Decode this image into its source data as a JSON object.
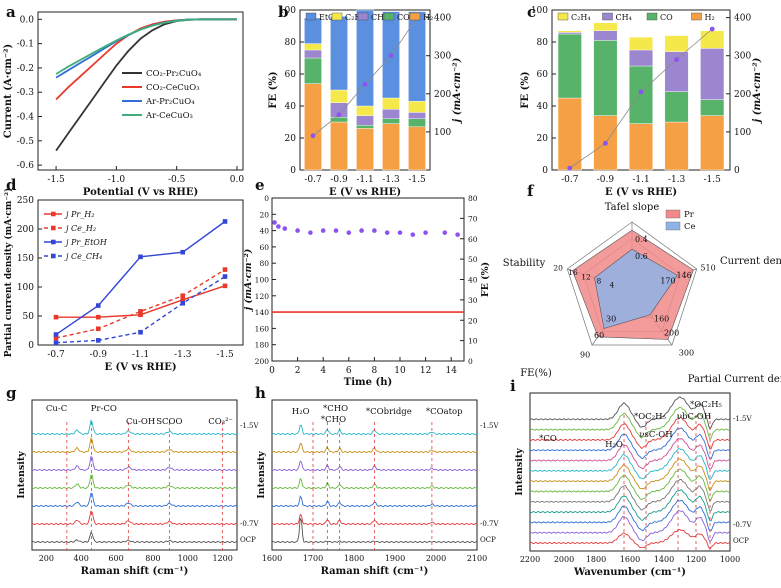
{
  "chart_data": [
    {
      "panel": "a",
      "type": "line",
      "xlabel": "Potential (V vs RHE)",
      "ylabel": "Current (A·cm⁻²)",
      "xlim": [
        -1.65,
        0.05
      ],
      "ylim": [
        -0.62,
        0.03
      ],
      "xticks": [
        "-1.5",
        "-1.0",
        "-0.5",
        "0.0"
      ],
      "yticks": [
        "0.0",
        "-0.1",
        "-0.2",
        "-0.3",
        "-0.4",
        "-0.5",
        "-0.6"
      ],
      "legend": [
        {
          "label": "CO₂-Pr₂CuO₄",
          "color": "#333333"
        },
        {
          "label": "CO₂-CeCuO₃",
          "color": "#e8392c"
        },
        {
          "label": "Ar-Pr₂CuO₄",
          "color": "#2f6fd6"
        },
        {
          "label": "Ar-CeCuO₃",
          "color": "#3fae7b"
        }
      ],
      "series": [
        {
          "name": "CO₂-Pr₂CuO₄",
          "color": "#333333",
          "x": [
            -1.5,
            -1.4,
            -1.3,
            -1.2,
            -1.1,
            -1.0,
            -0.9,
            -0.8,
            -0.7,
            -0.6,
            -0.5,
            -0.4,
            -0.3,
            -0.2,
            -0.1,
            0.0
          ],
          "y": [
            -0.54,
            -0.47,
            -0.4,
            -0.33,
            -0.26,
            -0.19,
            -0.13,
            -0.08,
            -0.045,
            -0.02,
            -0.007,
            -0.002,
            0,
            0,
            0,
            0
          ]
        },
        {
          "name": "CO₂-CeCuO₃",
          "color": "#e8392c",
          "x": [
            -1.5,
            -1.4,
            -1.3,
            -1.2,
            -1.1,
            -1.0,
            -0.9,
            -0.8,
            -0.7,
            -0.6,
            -0.5,
            -0.4,
            -0.3,
            -0.2,
            -0.1,
            0.0
          ],
          "y": [
            -0.33,
            -0.28,
            -0.235,
            -0.19,
            -0.145,
            -0.1,
            -0.065,
            -0.038,
            -0.02,
            -0.01,
            -0.004,
            -0.001,
            0,
            0,
            0,
            0
          ]
        },
        {
          "name": "Ar-Pr₂CuO₄",
          "color": "#2f6fd6",
          "x": [
            -1.5,
            -1.4,
            -1.3,
            -1.2,
            -1.1,
            -1.0,
            -0.9,
            -0.8,
            -0.7,
            -0.6,
            -0.5,
            -0.4,
            -0.3,
            -0.2,
            -0.1,
            0.0
          ],
          "y": [
            -0.24,
            -0.21,
            -0.18,
            -0.15,
            -0.12,
            -0.09,
            -0.065,
            -0.042,
            -0.025,
            -0.013,
            -0.005,
            -0.001,
            0,
            0,
            0,
            0
          ]
        },
        {
          "name": "Ar-CeCuO₃",
          "color": "#3fae7b",
          "x": [
            -1.5,
            -1.4,
            -1.3,
            -1.2,
            -1.1,
            -1.0,
            -0.9,
            -0.8,
            -0.7,
            -0.6,
            -0.5,
            -0.4,
            -0.3,
            -0.2,
            -0.1,
            0.0
          ],
          "y": [
            -0.225,
            -0.195,
            -0.168,
            -0.14,
            -0.113,
            -0.087,
            -0.063,
            -0.042,
            -0.026,
            -0.014,
            -0.006,
            -0.002,
            0,
            0,
            0,
            0
          ]
        }
      ]
    },
    {
      "panel": "b",
      "type": "bar",
      "stacked": true,
      "xlabel": "E (V vs RHE)",
      "ylabel": "FE (%)",
      "ylabel_right": "j (mA·cm⁻²)",
      "ylim": [
        0,
        100
      ],
      "ylim_right": [
        0,
        420
      ],
      "categories": [
        "-0.7",
        "-0.9",
        "-1.1",
        "-1.3",
        "-1.5"
      ],
      "yticks": [
        "0",
        "20",
        "40",
        "60",
        "80",
        "100"
      ],
      "yticks_right": [
        "100",
        "200",
        "300",
        "400"
      ],
      "legend": [
        {
          "label": "EtOH",
          "color": "#5b8fe0"
        },
        {
          "label": "C₂H₄",
          "color": "#f5e84a"
        },
        {
          "label": "CH₄",
          "color": "#9b86cf"
        },
        {
          "label": "CO",
          "color": "#57b26a"
        },
        {
          "label": "H₂",
          "color": "#f5a044"
        }
      ],
      "series": [
        {
          "name": "H₂",
          "color": "#f5a044",
          "values": [
            54,
            30,
            26,
            29,
            27
          ]
        },
        {
          "name": "CO",
          "color": "#57b26a",
          "values": [
            16,
            3,
            2,
            3,
            5
          ]
        },
        {
          "name": "CH₄",
          "color": "#9b86cf",
          "values": [
            5,
            9,
            6,
            6,
            4
          ]
        },
        {
          "name": "C₂H₄",
          "color": "#f5e84a",
          "values": [
            4,
            8,
            6,
            7,
            7
          ]
        },
        {
          "name": "EtOH",
          "color": "#5b8fe0",
          "values": [
            16,
            46,
            60,
            54,
            56
          ]
        }
      ],
      "current_density": {
        "color": "#8d52f0",
        "values": [
          90,
          145,
          225,
          300,
          400
        ]
      }
    },
    {
      "panel": "c",
      "type": "bar",
      "stacked": true,
      "xlabel": "E (V vs RHE)",
      "ylabel": "FE (%)",
      "ylabel_right": "j (mA·cm⁻²)",
      "ylim": [
        0,
        100
      ],
      "ylim_right": [
        0,
        420
      ],
      "categories": [
        "-0.7",
        "-0.9",
        "-1.1",
        "-1.3",
        "-1.5"
      ],
      "yticks": [
        "0",
        "20",
        "40",
        "60",
        "80",
        "100"
      ],
      "yticks_right": [
        "0",
        "100",
        "200",
        "300",
        "400"
      ],
      "legend": [
        {
          "label": "C₂H₄",
          "color": "#f5e84a"
        },
        {
          "label": "CH₄",
          "color": "#9b86cf"
        },
        {
          "label": "CO",
          "color": "#57b26a"
        },
        {
          "label": "H₂",
          "color": "#f5a044"
        }
      ],
      "series": [
        {
          "name": "H₂",
          "color": "#f5a044",
          "values": [
            45,
            34,
            29,
            30,
            34
          ]
        },
        {
          "name": "CO",
          "color": "#57b26a",
          "values": [
            40,
            47,
            36,
            19,
            10
          ]
        },
        {
          "name": "CH₄",
          "color": "#9b86cf",
          "values": [
            1,
            6,
            10,
            25,
            32
          ]
        },
        {
          "name": "C₂H₄",
          "color": "#f5e84a",
          "values": [
            1,
            5,
            8,
            10,
            11
          ]
        }
      ],
      "current_density": {
        "color": "#8d52f0",
        "values": [
          5,
          70,
          205,
          290,
          370
        ]
      }
    },
    {
      "panel": "d",
      "type": "line",
      "xlabel": "E (V vs RHE)",
      "ylabel": "Partial current density (mA·cm⁻²)",
      "categories": [
        "-0.7",
        "-0.9",
        "-1.1",
        "-1.3",
        "-1.5"
      ],
      "ylim": [
        0,
        250
      ],
      "yticks": [
        "0",
        "50",
        "100",
        "150",
        "200",
        "250"
      ],
      "legend": [
        {
          "label": "j Pr_H₂",
          "color": "#e8392c",
          "dash": false
        },
        {
          "label": "j Ce_H₂",
          "color": "#e8392c",
          "dash": true
        },
        {
          "label": "j Pr_EtOH",
          "color": "#3347d6",
          "dash": false
        },
        {
          "label": "j Ce_CH₄",
          "color": "#3347d6",
          "dash": true
        }
      ],
      "series": [
        {
          "name": "j Pr_H₂",
          "color": "#e8392c",
          "dash": false,
          "values": [
            48,
            48,
            52,
            78,
            102
          ]
        },
        {
          "name": "j Ce_H₂",
          "color": "#e8392c",
          "dash": true,
          "values": [
            12,
            28,
            58,
            85,
            130
          ]
        },
        {
          "name": "j Pr_EtOH",
          "color": "#3347d6",
          "dash": false,
          "values": [
            18,
            68,
            152,
            160,
            213
          ]
        },
        {
          "name": "j Ce_CH₄",
          "color": "#3347d6",
          "dash": true,
          "values": [
            4,
            8,
            22,
            72,
            118
          ]
        }
      ]
    },
    {
      "panel": "e",
      "type": "scatter",
      "xlabel": "Time (h)",
      "ylabel": "j (mA·cm⁻²)",
      "ylabel_right": "FE (%)",
      "xlim": [
        0,
        15
      ],
      "ylim": [
        0,
        200
      ],
      "ylim_right": [
        0,
        80
      ],
      "xticks": [
        "0",
        "2",
        "4",
        "6",
        "8",
        "10",
        "12",
        "14"
      ],
      "yticks": [
        "0",
        "20",
        "40",
        "60",
        "80",
        "100",
        "120",
        "140",
        "160",
        "180",
        "200"
      ],
      "yticks_right": [
        "0",
        "10",
        "20",
        "30",
        "40",
        "50",
        "60",
        "70",
        "80"
      ],
      "fe_series": {
        "color": "#8d52f0",
        "x": [
          0.2,
          0.5,
          1,
          2,
          3,
          4,
          5,
          6,
          7,
          8,
          9,
          10,
          11,
          12,
          13.5,
          14.5
        ],
        "y": [
          68,
          66,
          65,
          64,
          63,
          64,
          64,
          63,
          64,
          64,
          63,
          63,
          62,
          63,
          63,
          62
        ]
      },
      "j_series": {
        "color": "#e8392c",
        "x": [
          0,
          15
        ],
        "y": [
          140,
          140
        ]
      }
    },
    {
      "panel": "f",
      "type": "radar",
      "axes": [
        "Tafel slope",
        "Current density",
        "Partial Current density",
        "FE(%)",
        "Stability"
      ],
      "legend": [
        {
          "label": "Pr",
          "color": "#f1898a"
        },
        {
          "label": "Ce",
          "color": "#8fb3e6"
        }
      ],
      "pr_values": [
        0.88,
        0.95,
        0.9,
        0.85,
        0.92
      ],
      "ce_values": [
        0.6,
        0.7,
        0.45,
        0.7,
        0.58
      ],
      "tick_labels": {
        "tafel": [
          "0.4",
          "0.6"
        ],
        "current": [
          "170",
          "146",
          "510"
        ],
        "partial": [
          "160",
          "200",
          "300"
        ],
        "fe": [
          "30",
          "60",
          "90"
        ],
        "stability": [
          "4",
          "8",
          "12",
          "16",
          "20"
        ]
      }
    },
    {
      "panel": "g",
      "type": "line",
      "xlabel": "Raman shift (cm⁻¹)",
      "ylabel": "Intensity",
      "xticks": [
        "200",
        "400",
        "600",
        "800",
        "1000",
        "1200"
      ],
      "peak_labels": [
        "Cu-C",
        "Pr-CO",
        "Cu-OH",
        "SCOO",
        "CO₃²⁻"
      ],
      "trace_labels": [
        "-1.5V",
        "-0.7V",
        "OCP"
      ]
    },
    {
      "panel": "h",
      "type": "line",
      "xlabel": "Raman shift (cm⁻¹)",
      "ylabel": "Intensity",
      "xticks": [
        "1600",
        "1700",
        "1800",
        "1900",
        "2000",
        "2100"
      ],
      "peak_labels": [
        "H₂O",
        "*CHO",
        "*CHO",
        "*CObridge",
        "*COatop"
      ],
      "trace_labels": [
        "-1.5V",
        "-0.7V",
        "OCP"
      ]
    },
    {
      "panel": "i",
      "type": "line",
      "xlabel": "Wavenumber (cm⁻¹)",
      "ylabel": "Intensity",
      "xticks": [
        "2200",
        "2000",
        "1800",
        "1600",
        "1400",
        "1200",
        "1000"
      ],
      "peak_labels": [
        "*CO",
        "H₂O",
        "*OC₂H₅",
        "νsC-OH",
        "νbC-OH",
        "*OC₂H₅"
      ],
      "trace_labels": [
        "-1.5V",
        "-0.7V",
        "OCP"
      ]
    }
  ]
}
